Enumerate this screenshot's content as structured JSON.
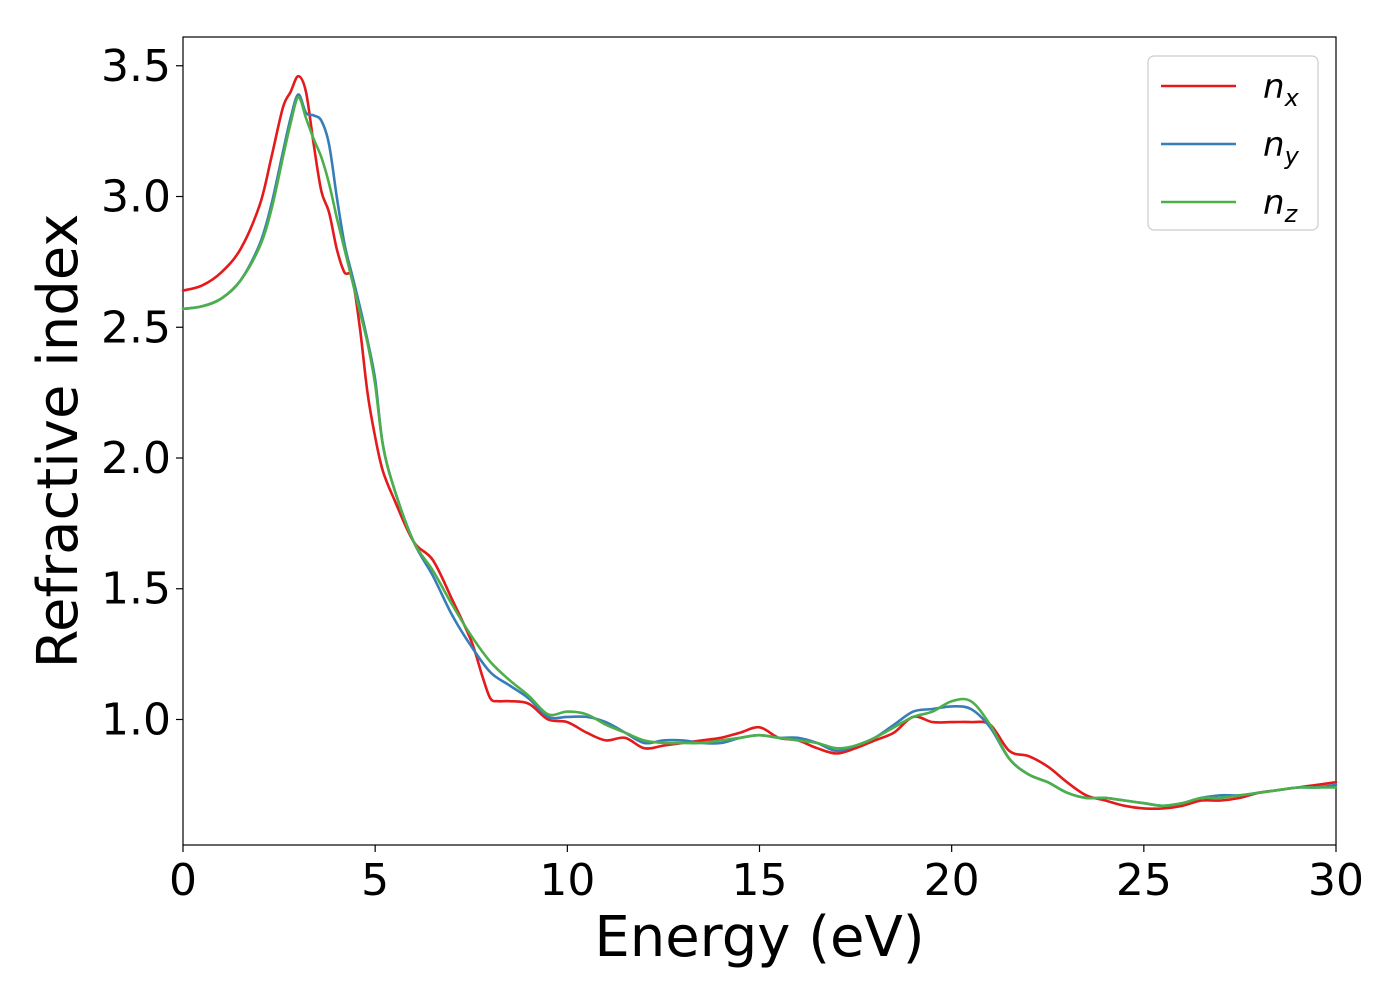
{
  "chart_data": {
    "type": "line",
    "xlabel": "Energy (eV)",
    "ylabel": "Refractive index",
    "xlim": [
      0,
      30
    ],
    "ylim": [
      0.52,
      3.61
    ],
    "xticks": [
      0,
      5,
      10,
      15,
      20,
      25,
      30
    ],
    "yticks": [
      1.0,
      1.5,
      2.0,
      2.5,
      3.0,
      3.5
    ],
    "grid": false,
    "legend_position": "top-right",
    "series": [
      {
        "name": "n",
        "subscript": "x",
        "color": "#e41a1c",
        "x": [
          0,
          0.5,
          1,
          1.5,
          2,
          2.3,
          2.6,
          2.8,
          3.0,
          3.2,
          3.4,
          3.6,
          3.8,
          4.0,
          4.2,
          4.4,
          4.6,
          4.8,
          5.0,
          5.2,
          5.5,
          6.0,
          6.5,
          7.0,
          7.5,
          7.8,
          8.0,
          8.2,
          8.5,
          9.0,
          9.5,
          10.0,
          10.5,
          11.0,
          11.5,
          12.0,
          12.5,
          13.0,
          13.5,
          14.0,
          14.5,
          15.0,
          15.5,
          16.0,
          16.5,
          17.0,
          17.5,
          18.0,
          18.5,
          19.0,
          19.5,
          20.0,
          20.5,
          21.0,
          21.5,
          22.0,
          22.5,
          23.0,
          23.5,
          24.0,
          24.5,
          25.0,
          25.5,
          26.0,
          26.5,
          27.0,
          27.5,
          28.0,
          28.5,
          29.0,
          29.5,
          30.0
        ],
        "values": [
          2.64,
          2.66,
          2.71,
          2.8,
          2.97,
          3.15,
          3.34,
          3.4,
          3.46,
          3.4,
          3.2,
          3.02,
          2.94,
          2.8,
          2.71,
          2.69,
          2.5,
          2.25,
          2.08,
          1.95,
          1.84,
          1.68,
          1.61,
          1.46,
          1.3,
          1.16,
          1.08,
          1.07,
          1.07,
          1.06,
          1.0,
          0.99,
          0.95,
          0.92,
          0.93,
          0.89,
          0.9,
          0.91,
          0.92,
          0.93,
          0.95,
          0.97,
          0.93,
          0.92,
          0.89,
          0.87,
          0.89,
          0.92,
          0.95,
          1.01,
          0.99,
          0.99,
          0.99,
          0.98,
          0.88,
          0.86,
          0.82,
          0.76,
          0.71,
          0.69,
          0.67,
          0.66,
          0.66,
          0.67,
          0.69,
          0.69,
          0.7,
          0.72,
          0.73,
          0.74,
          0.75,
          0.76
        ]
      },
      {
        "name": "n",
        "subscript": "y",
        "color": "#377eb8",
        "x": [
          0,
          0.5,
          1,
          1.5,
          2,
          2.3,
          2.6,
          2.8,
          3.0,
          3.2,
          3.4,
          3.6,
          3.8,
          4.0,
          4.2,
          4.4,
          4.6,
          4.8,
          5.0,
          5.2,
          5.5,
          6.0,
          6.5,
          7.0,
          7.5,
          8.0,
          8.5,
          9.0,
          9.5,
          10.0,
          10.5,
          11.0,
          11.5,
          12.0,
          12.5,
          13.0,
          13.5,
          14.0,
          14.5,
          15.0,
          15.5,
          16.0,
          16.5,
          17.0,
          17.5,
          18.0,
          18.5,
          19.0,
          19.5,
          20.0,
          20.5,
          21.0,
          21.5,
          22.0,
          22.5,
          23.0,
          23.5,
          24.0,
          24.5,
          25.0,
          25.5,
          26.0,
          26.5,
          27.0,
          27.5,
          28.0,
          28.5,
          29.0,
          29.5,
          30.0
        ],
        "values": [
          2.57,
          2.58,
          2.61,
          2.68,
          2.82,
          2.97,
          3.17,
          3.3,
          3.39,
          3.32,
          3.31,
          3.29,
          3.2,
          3.0,
          2.82,
          2.7,
          2.58,
          2.45,
          2.3,
          2.05,
          1.88,
          1.68,
          1.55,
          1.4,
          1.28,
          1.18,
          1.13,
          1.08,
          1.01,
          1.01,
          1.01,
          0.99,
          0.95,
          0.91,
          0.92,
          0.92,
          0.91,
          0.91,
          0.93,
          0.94,
          0.93,
          0.93,
          0.91,
          0.88,
          0.9,
          0.93,
          0.98,
          1.03,
          1.04,
          1.05,
          1.04,
          0.97,
          0.85,
          0.79,
          0.76,
          0.72,
          0.7,
          0.7,
          0.69,
          0.68,
          0.67,
          0.68,
          0.7,
          0.71,
          0.71,
          0.72,
          0.73,
          0.74,
          0.74,
          0.75
        ]
      },
      {
        "name": "n",
        "subscript": "z",
        "color": "#4daf4a",
        "x": [
          0,
          0.5,
          1,
          1.5,
          2,
          2.3,
          2.6,
          2.8,
          3.0,
          3.2,
          3.4,
          3.6,
          3.8,
          4.0,
          4.2,
          4.4,
          4.6,
          4.8,
          5.0,
          5.2,
          5.5,
          6.0,
          6.5,
          7.0,
          7.5,
          8.0,
          8.5,
          9.0,
          9.5,
          10.0,
          10.5,
          11.0,
          11.5,
          12.0,
          12.5,
          13.0,
          13.5,
          14.0,
          14.5,
          15.0,
          15.5,
          16.0,
          16.5,
          17.0,
          17.5,
          18.0,
          18.5,
          19.0,
          19.5,
          20.0,
          20.5,
          21.0,
          21.5,
          22.0,
          22.5,
          23.0,
          23.5,
          24.0,
          24.5,
          25.0,
          25.5,
          26.0,
          26.5,
          27.0,
          27.5,
          28.0,
          28.5,
          29.0,
          29.5,
          30.0
        ],
        "values": [
          2.57,
          2.58,
          2.61,
          2.68,
          2.81,
          2.95,
          3.15,
          3.28,
          3.38,
          3.3,
          3.22,
          3.15,
          3.05,
          2.92,
          2.8,
          2.68,
          2.56,
          2.44,
          2.28,
          2.05,
          1.88,
          1.68,
          1.57,
          1.44,
          1.32,
          1.22,
          1.15,
          1.09,
          1.02,
          1.03,
          1.02,
          0.98,
          0.95,
          0.92,
          0.91,
          0.91,
          0.91,
          0.92,
          0.93,
          0.94,
          0.93,
          0.92,
          0.91,
          0.89,
          0.9,
          0.93,
          0.97,
          1.01,
          1.03,
          1.07,
          1.07,
          0.98,
          0.85,
          0.79,
          0.76,
          0.72,
          0.7,
          0.7,
          0.69,
          0.68,
          0.67,
          0.68,
          0.7,
          0.7,
          0.71,
          0.72,
          0.73,
          0.74,
          0.74,
          0.74
        ]
      }
    ]
  }
}
